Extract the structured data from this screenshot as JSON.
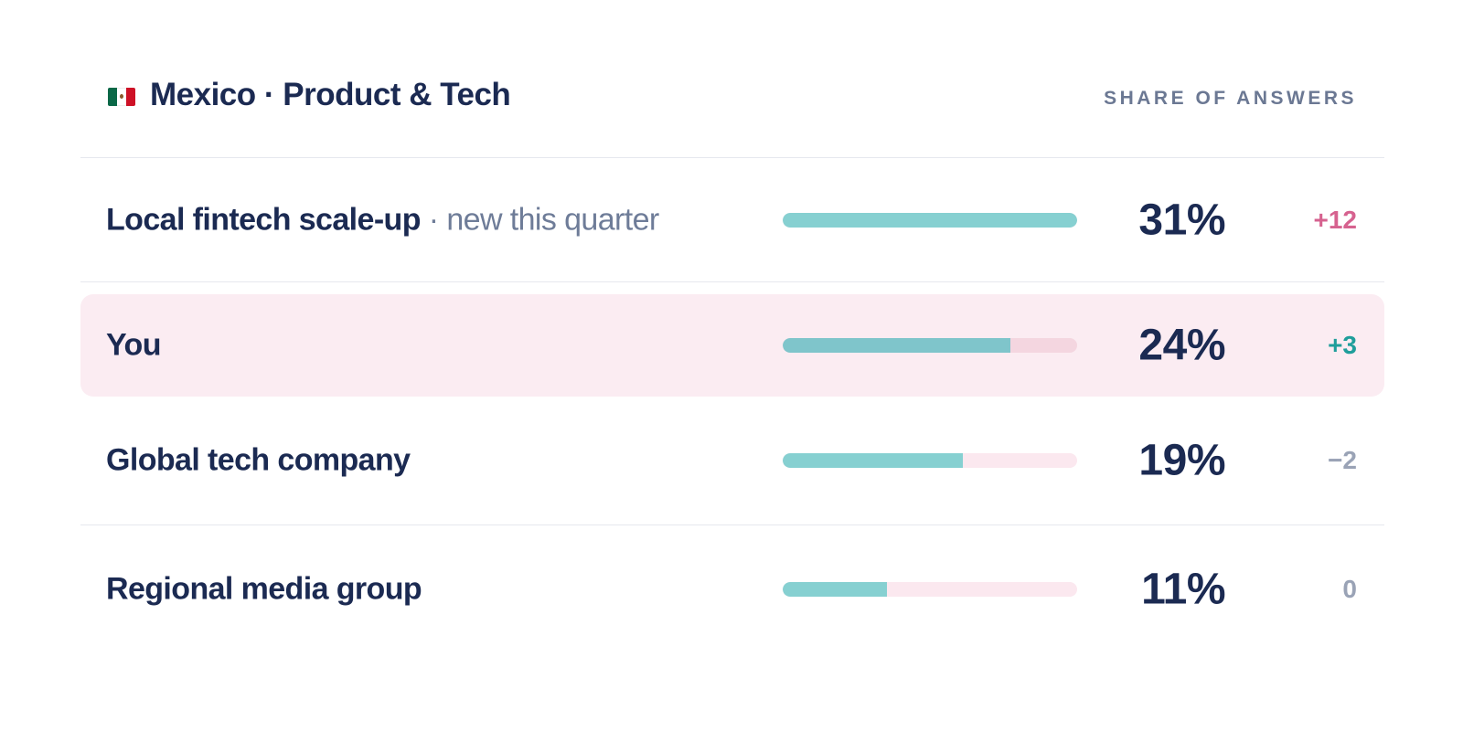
{
  "header": {
    "flag_icon": "mexico-flag-icon",
    "title": "Mexico · Product & Tech",
    "column_label": "SHARE OF ANSWERS"
  },
  "rows": [
    {
      "name": "Local fintech scale-up",
      "separator": "·",
      "note": "new this quarter",
      "share": 31,
      "share_label": "31%",
      "delta": "+12",
      "delta_color": "#d6628f",
      "highlighted": false
    },
    {
      "name": "You",
      "share": 24,
      "share_label": "24%",
      "delta": "+3",
      "delta_color": "#1f9e9b",
      "highlighted": true
    },
    {
      "name": "Global tech company",
      "share": 19,
      "share_label": "19%",
      "delta": "−2",
      "delta_color": "#9aa3b6",
      "highlighted": false
    },
    {
      "name": "Regional media group",
      "share": 11,
      "share_label": "11%",
      "delta": "0",
      "delta_color": "#9aa3b6",
      "highlighted": false
    }
  ],
  "colors": {
    "bar_fill": "#86d0d1",
    "bar_track": "#fbe8ef",
    "highlight_bg": "#fbecf2",
    "text_primary": "#1b2a52",
    "text_muted": "#6e7c98"
  }
}
